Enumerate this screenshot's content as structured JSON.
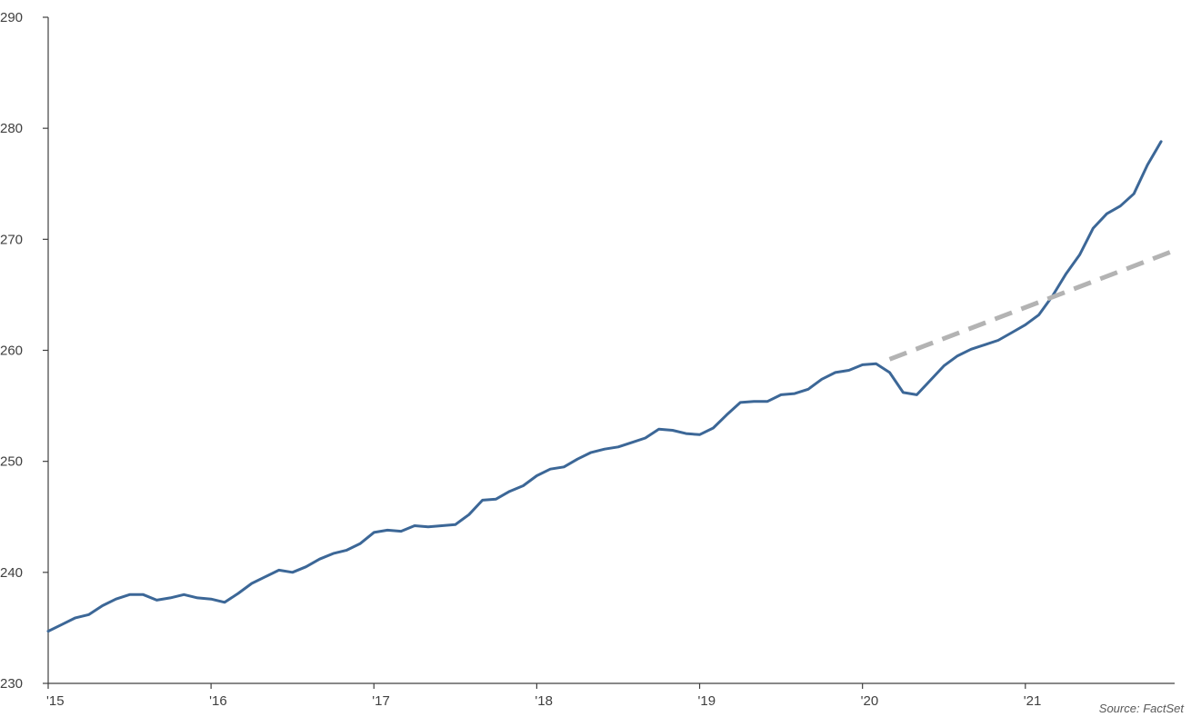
{
  "chart_data": {
    "type": "line",
    "title": "",
    "xlabel": "",
    "ylabel": "",
    "x_start": "2015-01",
    "x_step": "month",
    "xlim": [
      "2015-01",
      "2021-12"
    ],
    "ylim": [
      230,
      290
    ],
    "y_ticks": [
      230,
      240,
      250,
      260,
      270,
      280,
      290
    ],
    "x_ticks": [
      {
        "label": "'15",
        "date": "2015-01"
      },
      {
        "label": "'16",
        "date": "2016-01"
      },
      {
        "label": "'17",
        "date": "2017-01"
      },
      {
        "label": "'18",
        "date": "2018-01"
      },
      {
        "label": "'19",
        "date": "2019-01"
      },
      {
        "label": "'20",
        "date": "2020-01"
      },
      {
        "label": "'21",
        "date": "2021-01"
      }
    ],
    "grid": false,
    "series": [
      {
        "color": "#3c6797",
        "style": "solid",
        "values": [
          234.7,
          235.3,
          235.9,
          236.2,
          237.0,
          237.6,
          238.0,
          238.0,
          237.5,
          237.7,
          238.0,
          237.7,
          237.6,
          237.3,
          238.1,
          239.0,
          239.6,
          240.2,
          240.0,
          240.5,
          241.2,
          241.7,
          242.0,
          242.6,
          243.6,
          243.8,
          243.7,
          244.2,
          244.1,
          244.2,
          244.3,
          245.2,
          246.5,
          246.6,
          247.3,
          247.8,
          248.7,
          249.3,
          249.5,
          250.2,
          250.8,
          251.1,
          251.3,
          251.7,
          252.1,
          252.9,
          252.8,
          252.5,
          252.4,
          253.0,
          254.2,
          255.3,
          255.4,
          255.4,
          256.0,
          256.1,
          256.5,
          257.4,
          258.0,
          258.2,
          258.7,
          258.8,
          258.0,
          256.2,
          256.0,
          257.3,
          258.6,
          259.5,
          260.1,
          260.5,
          260.9,
          261.6,
          262.3,
          263.2,
          264.9,
          266.9,
          268.6,
          271.0,
          272.3,
          273.0,
          274.1,
          276.7,
          278.8
        ]
      },
      {
        "color": "#b3b3b3",
        "style": "dashed",
        "x": [
          "2020-03",
          "2021-12"
        ],
        "values": [
          259.2,
          269.0
        ]
      }
    ]
  },
  "source": "Source: FactSet"
}
